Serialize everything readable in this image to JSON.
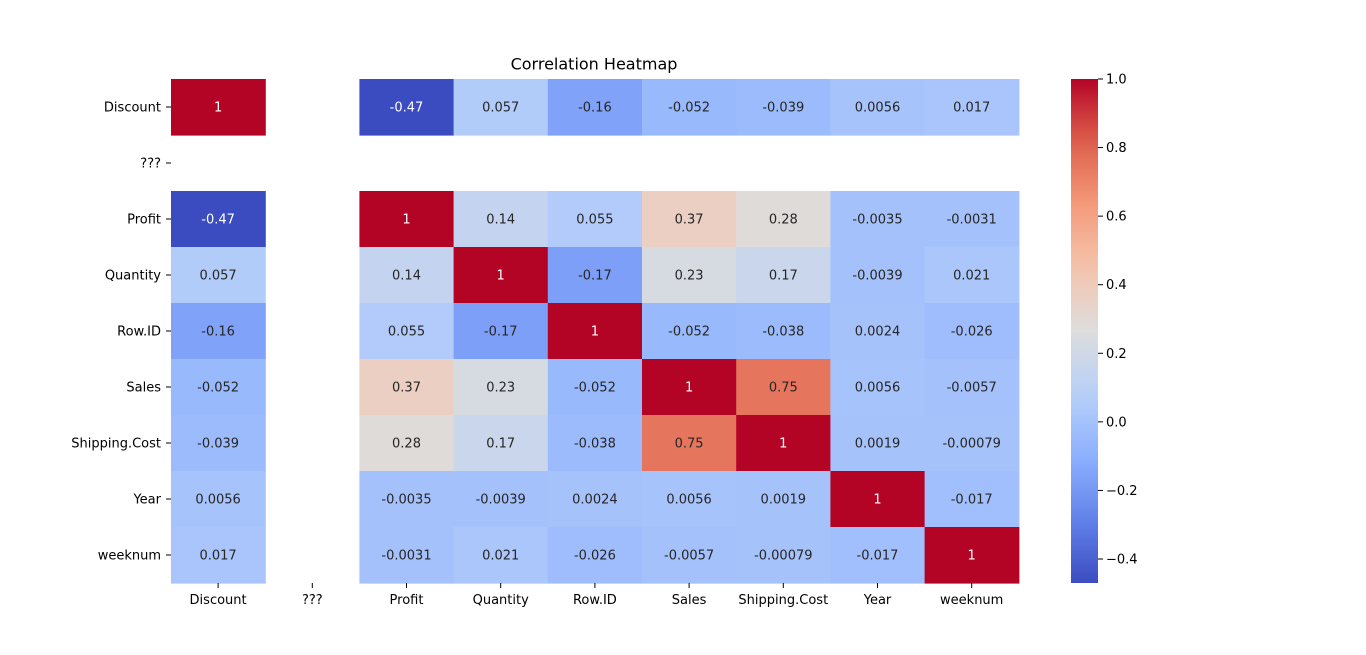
{
  "chart_data": {
    "type": "heatmap",
    "title": "Correlation Heatmap",
    "row_labels": [
      "Discount",
      "???",
      "Profit",
      "Quantity",
      "Row.ID",
      "Sales",
      "Shipping.Cost",
      "Year",
      "weeknum"
    ],
    "col_labels": [
      "Discount",
      "???",
      "Profit",
      "Quantity",
      "Row.ID",
      "Sales",
      "Shipping.Cost",
      "Year",
      "weeknum"
    ],
    "values": [
      [
        1,
        null,
        -0.47,
        0.057,
        -0.16,
        -0.052,
        -0.039,
        0.0056,
        0.017
      ],
      [
        null,
        null,
        null,
        null,
        null,
        null,
        null,
        null,
        null
      ],
      [
        -0.47,
        null,
        1,
        0.14,
        0.055,
        0.37,
        0.28,
        -0.0035,
        -0.0031
      ],
      [
        0.057,
        null,
        0.14,
        1,
        -0.17,
        0.23,
        0.17,
        -0.0039,
        0.021
      ],
      [
        -0.16,
        null,
        0.055,
        -0.17,
        1,
        -0.052,
        -0.038,
        0.0024,
        -0.026
      ],
      [
        -0.052,
        null,
        0.37,
        0.23,
        -0.052,
        1,
        0.75,
        0.0056,
        -0.0057
      ],
      [
        -0.039,
        null,
        0.28,
        0.17,
        -0.038,
        0.75,
        1,
        0.0019,
        -0.00079
      ],
      [
        0.0056,
        null,
        -0.0035,
        -0.0039,
        0.0024,
        0.0056,
        0.0019,
        1,
        -0.017
      ],
      [
        0.017,
        null,
        -0.0031,
        0.021,
        -0.026,
        -0.0057,
        -0.00079,
        -0.017,
        1
      ]
    ],
    "colormap": "coolwarm",
    "vmin": -0.47,
    "vmax": 1.0,
    "annotated": true,
    "colorbar": {
      "ticks": [
        1.0,
        0.8,
        0.6,
        0.4,
        0.2,
        0.0,
        -0.2,
        -0.4
      ],
      "tick_labels": [
        "1.0",
        "0.8",
        "0.6",
        "0.4",
        "0.2",
        "0.0",
        "−0.2",
        "−0.4"
      ]
    },
    "grid": false
  }
}
